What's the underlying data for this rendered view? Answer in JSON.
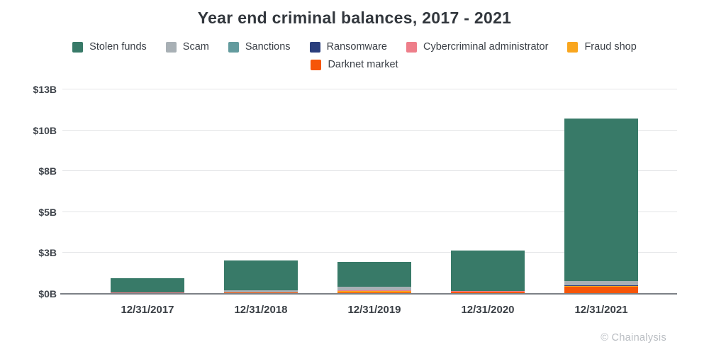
{
  "title": "Year end criminal balances, 2017 - 2021",
  "attribution": "© Chainalysis",
  "legend": {
    "rows": [
      [
        "Stolen funds",
        "Scam",
        "Sanctions",
        "Ransomware",
        "Cybercriminal administrator",
        "Fraud shop"
      ],
      [
        "Darknet market"
      ]
    ]
  },
  "chart_data": {
    "type": "bar",
    "stacked": true,
    "title": "Year end criminal balances, 2017 - 2021",
    "units": "billions USD",
    "grid": true,
    "legend_position": "top",
    "categories": [
      "12/31/2017",
      "12/31/2018",
      "12/31/2019",
      "12/31/2020",
      "12/31/2021"
    ],
    "series": [
      {
        "name": "Stolen funds",
        "color": "#387a68",
        "values": [
          0.88,
          1.85,
          1.52,
          2.45,
          9.95
        ]
      },
      {
        "name": "Scam",
        "color": "#a8b0b5",
        "values": [
          0.0,
          0.1,
          0.22,
          0.02,
          0.25
        ]
      },
      {
        "name": "Sanctions",
        "color": "#639b9e",
        "values": [
          0.0,
          0.0,
          0.0,
          0.0,
          0.02
        ]
      },
      {
        "name": "Ransomware",
        "color": "#2a3e7c",
        "values": [
          0.0,
          0.0,
          0.01,
          0.01,
          0.02
        ]
      },
      {
        "name": "Cybercriminal administrator",
        "color": "#ee7e8a",
        "values": [
          0.06,
          0.02,
          0.02,
          0.01,
          0.02
        ]
      },
      {
        "name": "Fraud shop",
        "color": "#f9a61e",
        "values": [
          0.0,
          0.01,
          0.09,
          0.02,
          0.02
        ]
      },
      {
        "name": "Darknet market",
        "color": "#f65508",
        "values": [
          0.02,
          0.08,
          0.09,
          0.13,
          0.45
        ]
      }
    ],
    "stack_order_bottom_to_top": [
      "Darknet market",
      "Fraud shop",
      "Cybercriminal administrator",
      "Ransomware",
      "Sanctions",
      "Scam",
      "Stolen funds"
    ],
    "totals": [
      0.96,
      2.06,
      1.95,
      2.64,
      10.73
    ],
    "yticks": [
      {
        "label": "$0B",
        "value": 0
      },
      {
        "label": "$3B",
        "value": 2.5
      },
      {
        "label": "$5B",
        "value": 5
      },
      {
        "label": "$8B",
        "value": 7.5
      },
      {
        "label": "$10B",
        "value": 10
      },
      {
        "label": "$13B",
        "value": 12.5
      }
    ],
    "ylim": [
      0,
      12.5
    ]
  }
}
